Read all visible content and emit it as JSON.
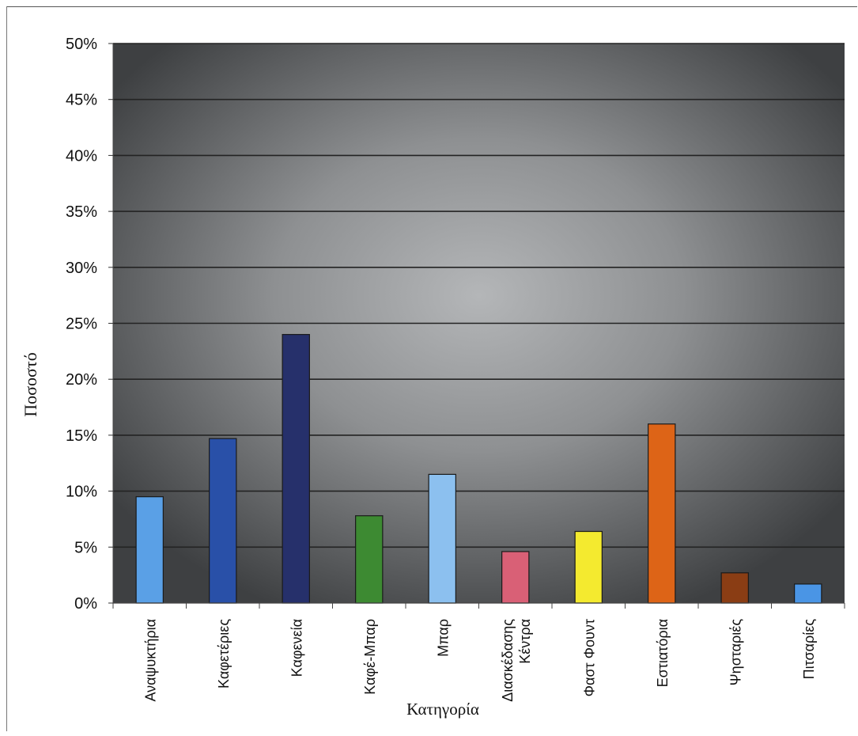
{
  "chart_data": {
    "type": "bar",
    "xlabel": "Κατηγορία",
    "ylabel": "Ποσοστό",
    "ylim": [
      0,
      50
    ],
    "yticks": [
      "0%",
      "5%",
      "10%",
      "15%",
      "20%",
      "25%",
      "30%",
      "35%",
      "40%",
      "45%",
      "50%"
    ],
    "categories": [
      "Αναψυκτήρια",
      "Καφετέριες",
      "Καφενεία",
      "Καφέ-Μπαρ",
      "Μπαρ",
      "Κέντρα Διασκέδασης",
      "Φαστ Φουντ",
      "Εστιατόρια",
      "Ψησταριές",
      "Πιτσαρίες"
    ],
    "category_lines": [
      [
        "Αναψυκτήρια"
      ],
      [
        "Καφετέριες"
      ],
      [
        "Καφενεία"
      ],
      [
        "Καφέ-Μπαρ"
      ],
      [
        "Μπαρ"
      ],
      [
        "Κέντρα",
        "Διασκέδασης"
      ],
      [
        "Φαστ Φουντ"
      ],
      [
        "Εστιατόρια"
      ],
      [
        "Ψησταριές"
      ],
      [
        "Πιτσαρίες"
      ]
    ],
    "values": [
      9.5,
      14.7,
      24.0,
      7.8,
      11.5,
      4.6,
      6.4,
      16.0,
      2.7,
      1.7
    ],
    "colors": [
      "#5aa0e6",
      "#2950a8",
      "#26306b",
      "#3d8a32",
      "#8cc0ef",
      "#d96076",
      "#f4ea2f",
      "#dd6417",
      "#8a3d14",
      "#4a95e5"
    ],
    "grid": true,
    "legend": "none"
  }
}
